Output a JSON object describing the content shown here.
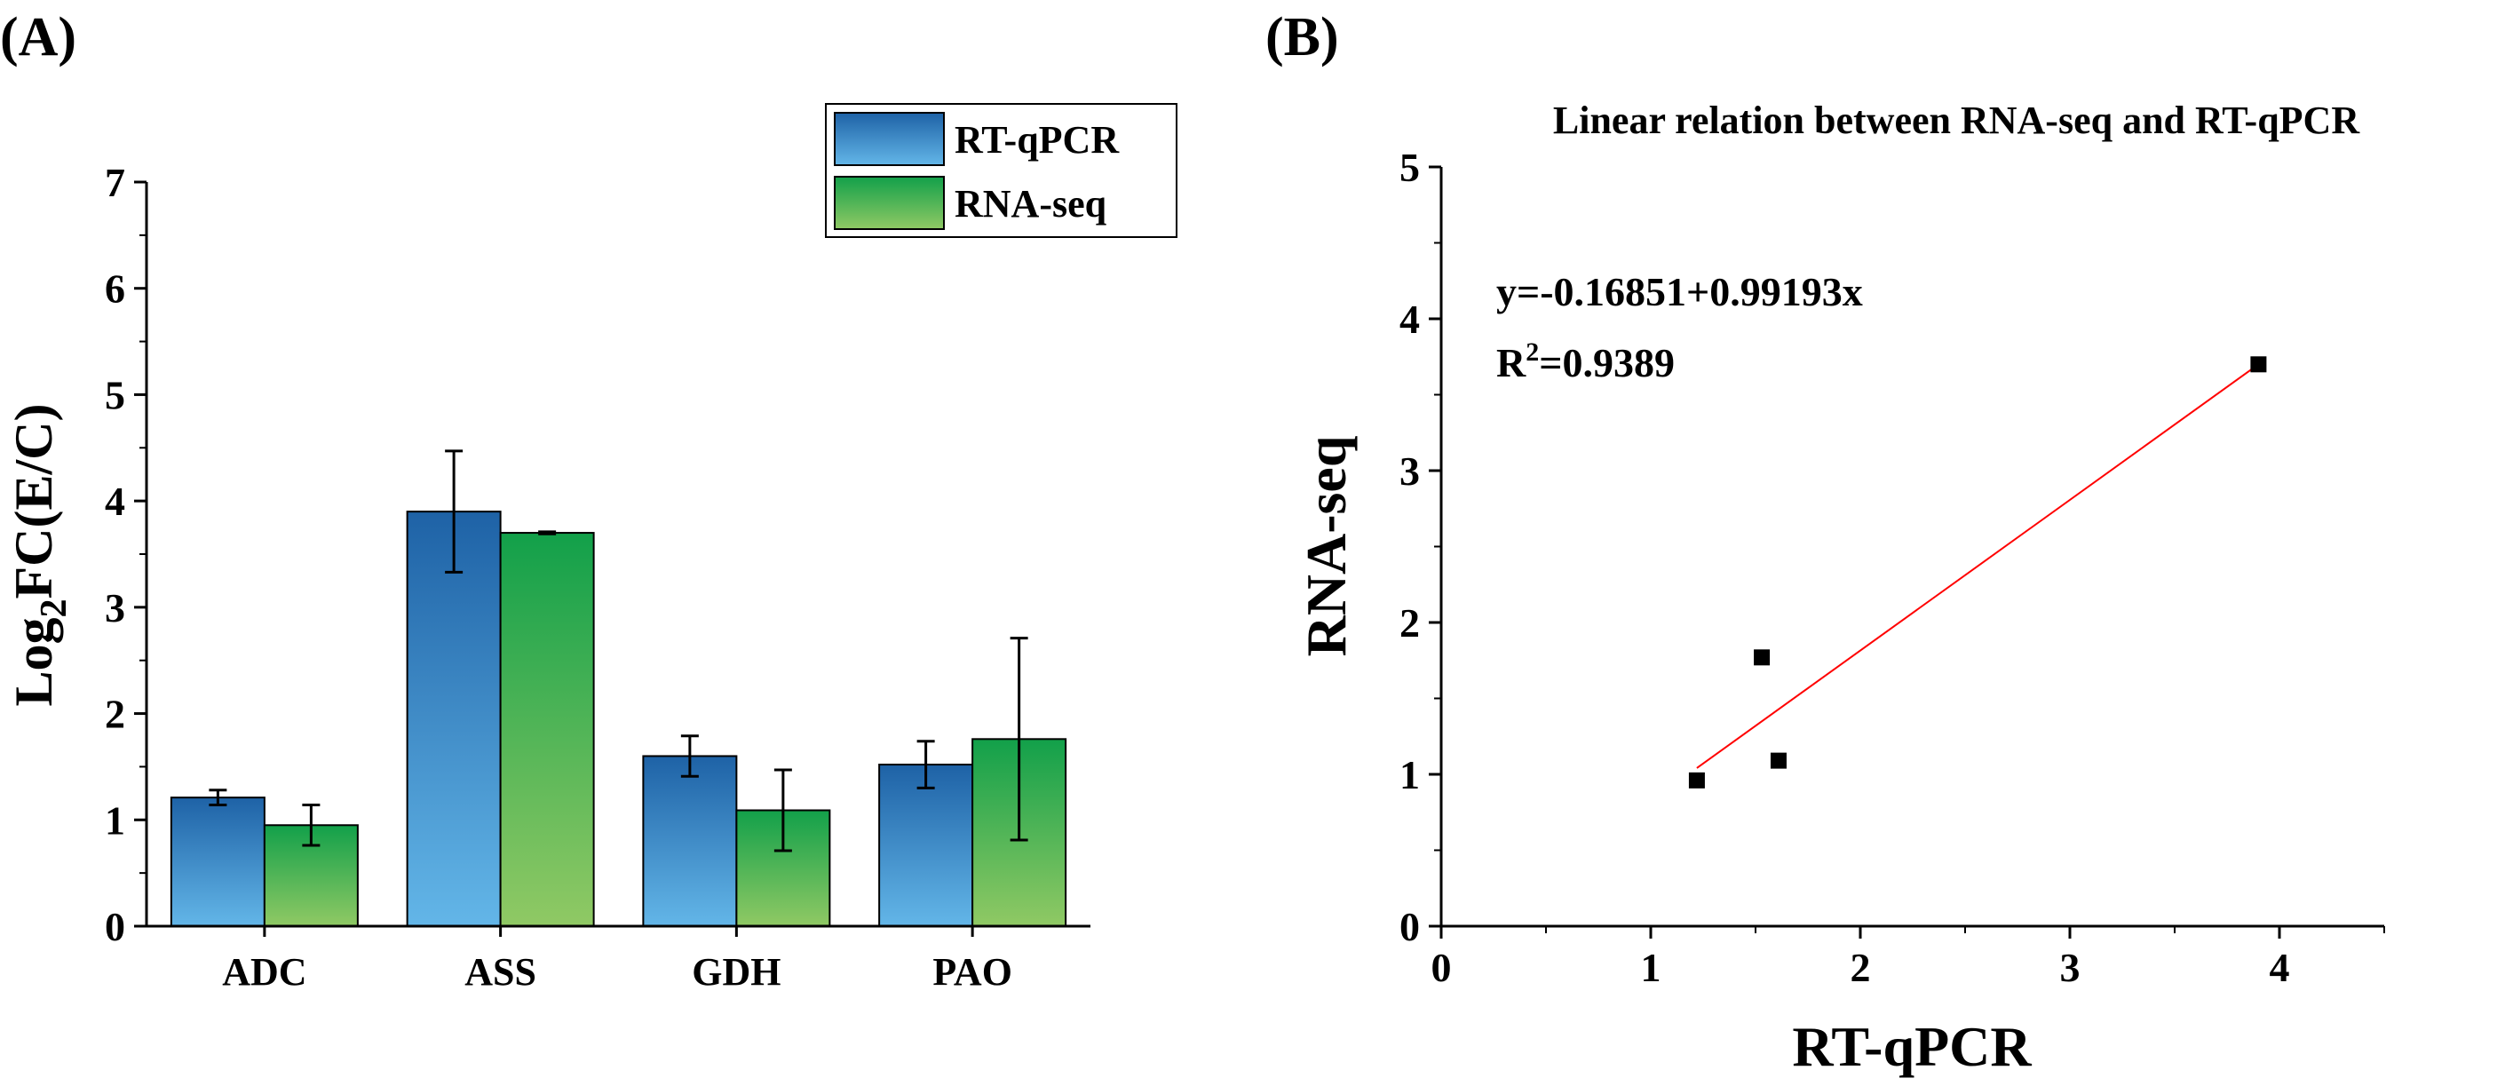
{
  "panels": {
    "a_label": "(A)",
    "b_label": "(B)"
  },
  "chart_data": [
    {
      "type": "bar",
      "panel": "(A)",
      "title": "",
      "xlabel": "",
      "ylabel_main": "Log",
      "ylabel_sub": "2",
      "ylabel_rest": "FC(E/C)",
      "categories": [
        "ADC",
        "ASS",
        "GDH",
        "PAO"
      ],
      "series": [
        {
          "name": "RT-qPCR",
          "values": [
            1.21,
            3.9,
            1.6,
            1.52
          ],
          "errors": [
            0.07,
            0.57,
            0.19,
            0.22
          ],
          "color_top": "#1e62a6",
          "color_bottom": "#63b6e8"
        },
        {
          "name": "RNA-seq",
          "values": [
            0.95,
            3.7,
            1.09,
            1.76
          ],
          "errors": [
            0.19,
            0.01,
            0.38,
            0.95
          ],
          "color_top": "#12a04a",
          "color_bottom": "#90c964"
        }
      ],
      "ylim": [
        0,
        7
      ],
      "yticks": [
        "0",
        "1",
        "2",
        "3",
        "4",
        "5",
        "6",
        "7"
      ],
      "legend_position": "top-right"
    },
    {
      "type": "scatter",
      "panel": "(B)",
      "title": "Linear relation between RNA-seq and RT-qPCR",
      "xlabel": "RT-qPCR",
      "ylabel": "RNA-seq",
      "x": [
        1.22,
        1.53,
        1.61,
        3.9
      ],
      "y": [
        0.96,
        1.77,
        1.09,
        3.7
      ],
      "fit": {
        "intercept": -0.16851,
        "slope": 0.99193,
        "x_range": [
          1.22,
          3.9
        ],
        "color": "#ff0000"
      },
      "equation": "y=-0.16851+0.99193x",
      "r2_prefix": "R",
      "r2_sup": "2",
      "r2_rest": "=0.9389",
      "xlim": [
        0,
        4.5
      ],
      "ylim": [
        0,
        5
      ],
      "xticks": [
        "0",
        "1",
        "2",
        "3",
        "4"
      ],
      "yticks": [
        "0",
        "1",
        "2",
        "3",
        "4",
        "5"
      ]
    }
  ]
}
